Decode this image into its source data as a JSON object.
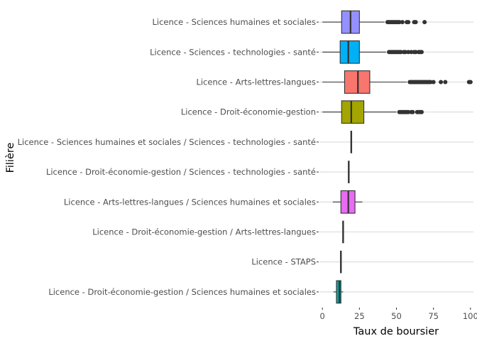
{
  "chart_data": {
    "type": "boxplot",
    "orientation": "horizontal",
    "xlabel": "Taux de boursier",
    "ylabel": "Filière",
    "xlim": [
      -2,
      102
    ],
    "xticks": [
      0,
      25,
      50,
      75,
      100
    ],
    "grid": "major-horizontal",
    "legend": "none",
    "categories": [
      "Licence - Sciences humaines et sociales",
      "Licence - Sciences - technologies - santé",
      "Licence - Arts-lettres-langues",
      "Licence - Droit-économie-gestion",
      "Licence - Sciences humaines et sociales / Sciences - technologies - santé",
      "Licence - Droit-économie-gestion / Sciences - technologies - santé",
      "Licence - Arts-lettres-langues / Sciences humaines et sociales",
      "Licence - Droit-économie-gestion / Arts-lettres-langues",
      "Licence - STAPS",
      "Licence - Droit-économie-gestion / Sciences humaines et sociales"
    ],
    "boxes": [
      {
        "min": 0,
        "q1": 13,
        "median": 19,
        "q3": 25,
        "max": 42,
        "outliers": [
          44,
          45,
          46,
          47,
          48,
          49,
          50,
          51,
          52,
          54,
          57,
          58,
          62,
          63,
          69
        ],
        "color": "#9590FF"
      },
      {
        "min": 0,
        "q1": 12,
        "median": 17.5,
        "q3": 25,
        "max": 43,
        "outliers": [
          45,
          46,
          47,
          48,
          49,
          50,
          51,
          52,
          53,
          55,
          56,
          58,
          60,
          62,
          63,
          65,
          66,
          67
        ],
        "color": "#00B0F6"
      },
      {
        "min": 0,
        "q1": 15,
        "median": 24,
        "q3": 32,
        "max": 57,
        "outliers": [
          59,
          60,
          61,
          62,
          63,
          64,
          65,
          66,
          67,
          68,
          69,
          70,
          71,
          72,
          73,
          75,
          80,
          83,
          99,
          100
        ],
        "color": "#F8766D"
      },
      {
        "min": 0,
        "q1": 13,
        "median": 19.5,
        "q3": 28,
        "max": 50,
        "outliers": [
          52,
          53,
          54,
          55,
          56,
          57,
          58,
          60,
          61,
          64,
          65,
          66,
          67
        ],
        "color": "#A3A500"
      },
      {
        "min": 19.5,
        "q1": 19.5,
        "median": 19.5,
        "q3": 19.5,
        "max": 19.5,
        "outliers": [],
        "color": "#00BF7D"
      },
      {
        "min": 17.8,
        "q1": 17.8,
        "median": 17.8,
        "q3": 17.8,
        "max": 17.8,
        "outliers": [],
        "color": "#00BFC4"
      },
      {
        "min": 7,
        "q1": 12.5,
        "median": 17.5,
        "q3": 22,
        "max": 27,
        "outliers": [],
        "color": "#E76BF3"
      },
      {
        "min": 14,
        "q1": 14,
        "median": 14,
        "q3": 14,
        "max": 14,
        "outliers": [],
        "color": "#D89000"
      },
      {
        "min": 12.5,
        "q1": 12.5,
        "median": 12.5,
        "q3": 12.5,
        "max": 12.5,
        "outliers": [],
        "color": "#FF62BC"
      },
      {
        "min": 7.5,
        "q1": 9.5,
        "median": 11.5,
        "q3": 12.5,
        "max": 14,
        "outliers": [],
        "color": "#00A9A5"
      }
    ]
  }
}
